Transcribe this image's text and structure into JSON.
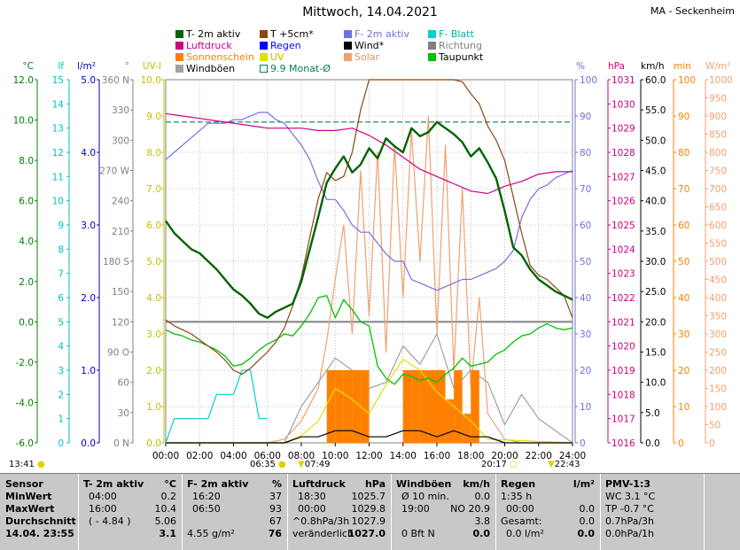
{
  "title": "Mittwoch, 14.04.2021",
  "station": "MA - Seckenheim",
  "legend": [
    {
      "label": "T- 2m aktiv",
      "color": "#006400"
    },
    {
      "label": "T +5cm*",
      "color": "#8b4513"
    },
    {
      "label": "F- 2m aktiv",
      "color": "#7070e0"
    },
    {
      "label": "F- Blatt",
      "color": "#00d0d0"
    },
    {
      "label": "Luftdruck",
      "color": "#cc0080"
    },
    {
      "label": "Regen",
      "color": "#0000ff"
    },
    {
      "label": "Wind*",
      "color": "#000000"
    },
    {
      "label": "Richtung",
      "color": "#808080"
    },
    {
      "label": "Sonnenschein",
      "color": "#ff8000"
    },
    {
      "label": "UV",
      "color": "#e0e000"
    },
    {
      "label": "Solar",
      "color": "#f0a070"
    },
    {
      "label": "Taupunkt",
      "color": "#00c000"
    },
    {
      "label": "Windböen",
      "color": "#a0a0a0"
    },
    {
      "label": "9.9 Monat-Ø",
      "color": "#008060"
    }
  ],
  "axes": {
    "temp": {
      "unit": "°C",
      "ticks": [
        "12.0",
        "10.0",
        "8.0",
        "6.0",
        "4.0",
        "2.0",
        "0.0",
        "-2.0",
        "-4.0",
        "-6.0"
      ],
      "color": "#008000"
    },
    "leaf": {
      "unit": "lf",
      "ticks": [
        "15",
        "14",
        "13",
        "12",
        "11",
        "10",
        "9",
        "8",
        "7",
        "6",
        "5",
        "4",
        "3",
        "2",
        "1",
        "0"
      ],
      "color": "#00c0c0"
    },
    "rain": {
      "unit": "l/m²",
      "ticks": [
        "5.0",
        "4.0",
        "3.0",
        "2.0",
        "1.0",
        "0.0"
      ],
      "color": "#0000c0"
    },
    "dir": {
      "unit": "°",
      "ticks": [
        "360 N",
        "330",
        "300",
        "270 W",
        "240",
        "210",
        "180 S",
        "150",
        "120",
        "90 O",
        "60",
        "30",
        "0 N"
      ],
      "color": "#808080"
    },
    "uv": {
      "unit": "UV-I",
      "ticks": [
        "10.0",
        "9.0",
        "8.0",
        "7.0",
        "6.0",
        "5.0",
        "4.0",
        "3.0",
        "2.0",
        "1.0",
        "0.0"
      ],
      "color": "#c0c000"
    },
    "hum": {
      "unit": "%",
      "ticks": [
        "100",
        "90",
        "80",
        "70",
        "60",
        "50",
        "40",
        "30",
        "20",
        "10",
        "0"
      ],
      "color": "#7070e0"
    },
    "press": {
      "unit": "hPa",
      "ticks": [
        "1031",
        "1030",
        "1029",
        "1028",
        "1027",
        "1026",
        "1025",
        "1024",
        "1023",
        "1022",
        "1021",
        "1020",
        "1019",
        "1018",
        "1017",
        "1016"
      ],
      "color": "#cc0080"
    },
    "wind": {
      "unit": "km/h",
      "ticks": [
        "60.0",
        "55.0",
        "50.0",
        "45.0",
        "40.0",
        "35.0",
        "30.0",
        "25.0",
        "20.0",
        "15.0",
        "10.0",
        "5.0",
        "0.0"
      ],
      "color": "#000000"
    },
    "sun": {
      "unit": "min",
      "ticks": [
        "100",
        "90",
        "80",
        "70",
        "60",
        "50",
        "40",
        "30",
        "20",
        "10",
        "0"
      ],
      "color": "#ff8000"
    },
    "solar": {
      "unit": "W/m²",
      "ticks": [
        "1000",
        "950",
        "900",
        "850",
        "800",
        "750",
        "700",
        "650",
        "600",
        "550",
        "500",
        "450",
        "400",
        "350",
        "300",
        "250",
        "200",
        "150",
        "100",
        "50",
        "0"
      ],
      "color": "#f0a070"
    },
    "x_ticks": [
      "00:00",
      "02:00",
      "04:00",
      "06:00",
      "08:00",
      "10:00",
      "12:00",
      "14:00",
      "16:00",
      "18:00",
      "20:00",
      "22:00",
      "24:00"
    ]
  },
  "markers": {
    "moonrise": "13:41",
    "sunrise": "06:35",
    "solar_noon": "07:49",
    "sunset": "20:17",
    "moonset": "22:43"
  },
  "chart_data": {
    "type": "line",
    "title": "Mittwoch, 14.04.2021",
    "x_unit": "hours",
    "xlim": [
      0,
      24
    ],
    "series": [
      {
        "name": "T- 2m aktiv",
        "axis": "temp",
        "ylim": [
          -6,
          12
        ],
        "x": [
          0,
          0.5,
          1,
          1.5,
          2,
          2.5,
          3,
          3.5,
          4,
          4.5,
          5,
          5.5,
          6,
          6.5,
          7,
          7.5,
          8,
          8.5,
          9,
          9.5,
          10,
          10.5,
          11,
          11.5,
          12,
          12.5,
          13,
          13.5,
          14,
          14.5,
          15,
          15.5,
          16,
          16.5,
          17,
          17.5,
          18,
          18.5,
          19,
          19.5,
          20,
          20.5,
          21,
          21.5,
          22,
          22.5,
          23,
          23.5,
          24
        ],
        "y": [
          5.0,
          4.4,
          4.0,
          3.6,
          3.4,
          3.0,
          2.6,
          2.1,
          1.6,
          1.3,
          0.9,
          0.4,
          0.2,
          0.5,
          0.7,
          0.9,
          2.0,
          3.6,
          5.2,
          6.9,
          7.6,
          8.2,
          7.4,
          7.8,
          8.6,
          8.1,
          9.1,
          8.7,
          8.4,
          9.6,
          9.2,
          9.4,
          9.9,
          9.6,
          9.3,
          8.9,
          8.2,
          8.6,
          7.9,
          7.1,
          5.5,
          3.7,
          3.3,
          2.6,
          2.1,
          1.8,
          1.5,
          1.3,
          1.1
        ]
      },
      {
        "name": "T +5cm*",
        "axis": "temp",
        "ylim": [
          -6,
          12
        ],
        "x": [
          0,
          0.5,
          1,
          1.5,
          2,
          2.5,
          3,
          3.5,
          4,
          4.5,
          5,
          5.5,
          6,
          6.5,
          7,
          7.5,
          8,
          8.5,
          9,
          9.5,
          10,
          10.5,
          11,
          11.5,
          12,
          12.5,
          13,
          13.5,
          14,
          14.5,
          15,
          15.5,
          16,
          16.5,
          17,
          17.5,
          18,
          18.5,
          19,
          19.5,
          20,
          20.5,
          21,
          21.5,
          22,
          22.5,
          23,
          23.5,
          24
        ],
        "y": [
          0.1,
          -0.2,
          -0.4,
          -0.6,
          -0.9,
          -1.2,
          -1.5,
          -1.9,
          -2.4,
          -2.6,
          -2.3,
          -1.9,
          -1.5,
          -1.0,
          -0.3,
          0.8,
          2.2,
          4.2,
          6.1,
          7.4,
          7.0,
          7.2,
          8.4,
          10.5,
          12.2,
          13.0,
          13.8,
          13.6,
          13.2,
          12.5,
          12.0,
          12.8,
          13.5,
          12.6,
          12.2,
          11.9,
          11.3,
          10.8,
          9.7,
          9.0,
          8.0,
          6.2,
          4.4,
          2.8,
          2.3,
          2.1,
          1.7,
          1.3,
          0.2
        ]
      },
      {
        "name": "Taupunkt",
        "axis": "temp",
        "ylim": [
          -6,
          12
        ],
        "x": [
          0,
          0.5,
          1,
          1.5,
          2,
          2.5,
          3,
          3.5,
          4,
          4.5,
          5,
          5.5,
          6,
          6.5,
          7,
          7.5,
          8,
          8.5,
          9,
          9.5,
          10,
          10.5,
          11,
          11.5,
          12,
          12.5,
          13,
          13.5,
          14,
          14.5,
          15,
          15.5,
          16,
          16.5,
          17,
          17.5,
          18,
          18.5,
          19,
          19.5,
          20,
          20.5,
          21,
          21.5,
          22,
          22.5,
          23,
          23.5,
          24
        ],
        "y": [
          -0.4,
          -0.6,
          -0.7,
          -0.9,
          -1.0,
          -1.2,
          -1.4,
          -1.7,
          -2.2,
          -2.1,
          -1.8,
          -1.4,
          -1.1,
          -0.9,
          -0.6,
          -0.7,
          -0.2,
          0.4,
          1.2,
          1.3,
          0.2,
          1.1,
          0.6,
          0.0,
          -0.2,
          -2.2,
          -2.8,
          -3.1,
          -2.6,
          -2.7,
          -2.9,
          -2.8,
          -3.0,
          -2.6,
          -2.3,
          -1.8,
          -2.2,
          -2.1,
          -2.0,
          -1.6,
          -1.4,
          -1.0,
          -0.7,
          -0.6,
          -0.3,
          -0.1,
          -0.3,
          -0.4,
          -0.3
        ]
      },
      {
        "name": "F- 2m aktiv",
        "axis": "hum",
        "ylim": [
          0,
          100
        ],
        "x": [
          0,
          0.5,
          1,
          1.5,
          2,
          2.5,
          3,
          3.5,
          4,
          4.5,
          5,
          5.5,
          6,
          6.5,
          7,
          7.5,
          8,
          8.5,
          9,
          9.5,
          10,
          10.5,
          11,
          11.5,
          12,
          12.5,
          13,
          13.5,
          14,
          14.5,
          15,
          15.5,
          16,
          16.5,
          17,
          17.5,
          18,
          18.5,
          19,
          19.5,
          20,
          20.5,
          21,
          21.5,
          22,
          22.5,
          23,
          23.5,
          24
        ],
        "y": [
          78,
          80,
          82,
          84,
          86,
          88,
          88,
          88,
          89,
          89,
          90,
          91,
          91,
          89,
          88,
          85,
          82,
          78,
          72,
          67,
          67,
          64,
          60,
          58,
          58,
          55,
          52,
          50,
          50,
          45,
          44,
          43,
          42,
          43,
          44,
          45,
          45,
          46,
          47,
          48,
          50,
          53,
          62,
          67,
          70,
          71,
          73,
          74,
          75
        ]
      },
      {
        "name": "Luftdruck",
        "axis": "press",
        "ylim": [
          1016,
          1031
        ],
        "x": [
          0,
          1,
          2,
          3,
          4,
          5,
          6,
          7,
          8,
          9,
          10,
          11,
          12,
          13,
          14,
          15,
          16,
          17,
          18,
          19,
          20,
          21,
          22,
          23,
          24
        ],
        "y": [
          1029.6,
          1029.5,
          1029.4,
          1029.3,
          1029.2,
          1029.1,
          1029.0,
          1029.0,
          1029.0,
          1028.9,
          1028.9,
          1029.0,
          1028.7,
          1028.3,
          1027.8,
          1027.3,
          1027.0,
          1026.7,
          1026.4,
          1026.3,
          1026.6,
          1026.8,
          1027.1,
          1027.2,
          1027.2
        ]
      },
      {
        "name": "Solar",
        "axis": "solar",
        "ylim": [
          0,
          1000
        ],
        "x": [
          0,
          6,
          7,
          8,
          9,
          9.5,
          10,
          10.5,
          11,
          11.5,
          12,
          12.5,
          13,
          13.5,
          14,
          14.5,
          15,
          15.5,
          16,
          16.5,
          17,
          17.5,
          18,
          18.5,
          19,
          20,
          21,
          24
        ],
        "y": [
          0,
          0,
          10,
          60,
          150,
          280,
          450,
          600,
          300,
          750,
          350,
          800,
          250,
          820,
          400,
          860,
          500,
          900,
          300,
          820,
          200,
          700,
          150,
          400,
          80,
          10,
          0,
          0
        ]
      },
      {
        "name": "Sonnenschein",
        "axis": "sun",
        "ylim": [
          0,
          100
        ],
        "x": [
          9.5,
          10,
          10.5,
          11,
          11.5,
          12,
          14,
          14.5,
          15,
          15.5,
          16,
          16.5,
          17,
          17.5,
          18,
          18.5
        ],
        "y": [
          5,
          5,
          5,
          5,
          5,
          0,
          5,
          5,
          5,
          5,
          5,
          3,
          5,
          2,
          5,
          0
        ]
      },
      {
        "name": "Wind*",
        "axis": "wind",
        "ylim": [
          0,
          60
        ],
        "x": [
          0,
          6,
          7,
          8,
          9,
          10,
          11,
          12,
          13,
          14,
          15,
          16,
          17,
          18,
          19,
          20,
          24
        ],
        "y": [
          0,
          0,
          0,
          1,
          1,
          2,
          2,
          1,
          1,
          2,
          2,
          1,
          2,
          1,
          1,
          0,
          0
        ]
      },
      {
        "name": "Windböen",
        "axis": "wind",
        "ylim": [
          0,
          60
        ],
        "x": [
          0,
          7,
          8,
          9,
          10,
          11,
          12,
          13,
          14,
          15,
          16,
          17,
          18,
          19,
          20,
          21,
          22,
          24
        ],
        "y": [
          0,
          0,
          6,
          10,
          14,
          12,
          9,
          10,
          16,
          13,
          18,
          9,
          12,
          10,
          3,
          8,
          4,
          0
        ]
      },
      {
        "name": "UV",
        "axis": "uv",
        "ylim": [
          0,
          10
        ],
        "x": [
          0,
          7,
          8,
          9,
          10,
          11,
          12,
          13,
          14,
          15,
          16,
          17,
          18,
          19,
          24
        ],
        "y": [
          0,
          0,
          0.2,
          0.6,
          1.5,
          1.2,
          0.8,
          1.6,
          2.3,
          2.0,
          1.4,
          1.0,
          0.6,
          0.1,
          0
        ]
      },
      {
        "name": "F- Blatt",
        "axis": "leaf",
        "ylim": [
          0,
          15
        ],
        "x": [
          0,
          0.5,
          1,
          2,
          2.5,
          3,
          3.5,
          4,
          4.5,
          5,
          5.5,
          6
        ],
        "y": [
          0,
          1,
          1,
          1,
          1,
          2,
          2,
          2,
          3,
          3,
          1,
          1
        ]
      },
      {
        "name": "9.9 Monat-Ø",
        "axis": "temp",
        "ylim": [
          -6,
          12
        ],
        "x": [
          0,
          24
        ],
        "y": [
          9.9,
          9.9
        ]
      }
    ]
  },
  "stats": {
    "row_labels": [
      "Sensor",
      "MinWert",
      "MaxWert",
      "Durchschnitt",
      "14.04. 23:55"
    ],
    "cols": [
      {
        "head": "T- 2m aktiv",
        "unit": "°C",
        "rows": [
          [
            "04:00",
            "0.2"
          ],
          [
            "16:00",
            "10.4"
          ],
          [
            "( - 4.84 )",
            "5.06"
          ],
          [
            "",
            "3.1"
          ]
        ]
      },
      {
        "head": "F- 2m aktiv",
        "unit": "%",
        "rows": [
          [
            "16:20",
            "37"
          ],
          [
            "06:50",
            "93"
          ],
          [
            "",
            "67"
          ],
          [
            "4.55 g/m²",
            "76"
          ]
        ]
      },
      {
        "head": "Luftdruck",
        "unit": "hPa",
        "rows": [
          [
            "18:30",
            "1025.7"
          ],
          [
            "00:00",
            "1029.8"
          ],
          [
            "^0.8hPa/3h",
            "1027.9"
          ],
          [
            "veränderlich",
            "1027.0"
          ]
        ]
      },
      {
        "head": "Windböen",
        "unit": "km/h",
        "rows": [
          [
            "Ø 10 min.",
            "0.0"
          ],
          [
            "19:00",
            "NO 20.9"
          ],
          [
            "",
            "3.8"
          ],
          [
            "0 Bft N",
            "0.0"
          ]
        ]
      },
      {
        "head": "Regen",
        "unit": "l/m²",
        "rows": [
          [
            "1:35 h",
            ""
          ],
          [
            "00:00",
            "0.0"
          ],
          [
            "Gesamt:",
            "0.0"
          ],
          [
            "0.0 l/m²",
            "0.0"
          ]
        ]
      },
      {
        "head": "PMV-1:3",
        "unit": "",
        "rows": [
          [
            "WC 3.1 °C",
            ""
          ],
          [
            "TP -0.7 °C",
            ""
          ],
          [
            "0.7hPa/3h",
            ""
          ],
          [
            "0.0hPa/1h",
            ""
          ]
        ]
      }
    ]
  }
}
